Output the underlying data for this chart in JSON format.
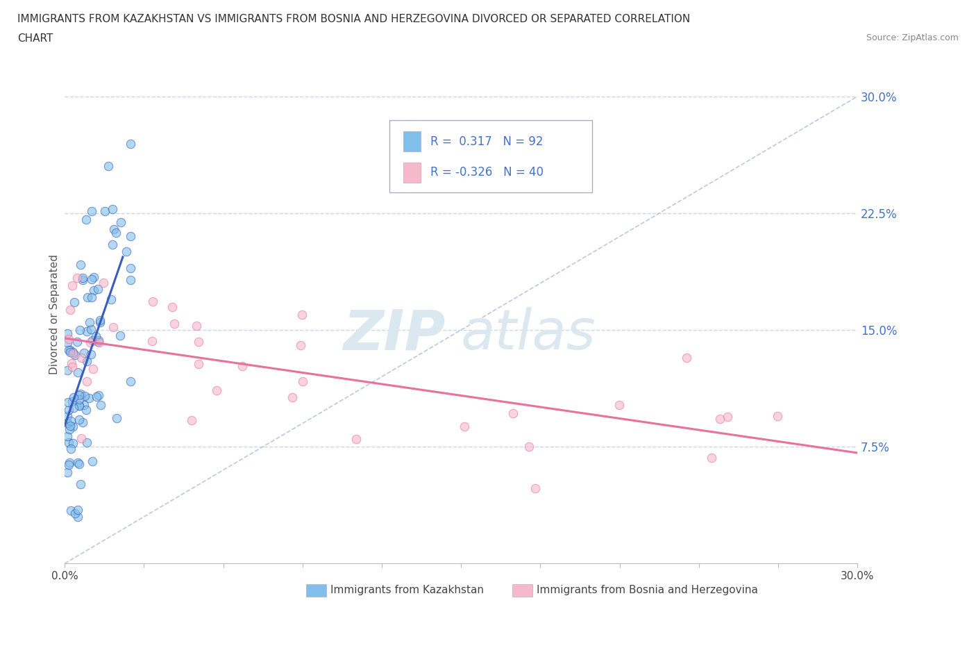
{
  "title_line1": "IMMIGRANTS FROM KAZAKHSTAN VS IMMIGRANTS FROM BOSNIA AND HERZEGOVINA DIVORCED OR SEPARATED CORRELATION",
  "title_line2": "CHART",
  "source": "Source: ZipAtlas.com",
  "ylabel": "Divorced or Separated",
  "color_kaz": "#7fbfea",
  "color_bos": "#f5b8cc",
  "color_kaz_line": "#3a5bbf",
  "color_bos_line": "#e8729a",
  "color_diag": "#aabbd8",
  "watermark_zip": "ZIP",
  "watermark_atlas": "atlas",
  "background_color": "#ffffff",
  "grid_color": "#c8d8ea",
  "xmin": 0.0,
  "xmax": 0.3,
  "ymin": 0.0,
  "ymax": 0.32,
  "y_ticks_right": [
    0.075,
    0.15,
    0.225,
    0.3
  ],
  "y_tick_labels_right": [
    "7.5%",
    "15.0%",
    "22.5%",
    "30.0%"
  ],
  "legend_text1": "R =  0.317   N = 92",
  "legend_text2": "R = -0.326   N = 40",
  "legend_color": "#4472c4",
  "bottom_label1": "Immigrants from Kazakhstan",
  "bottom_label2": "Immigrants from Bosnia and Herzegovina",
  "seed": 12345
}
